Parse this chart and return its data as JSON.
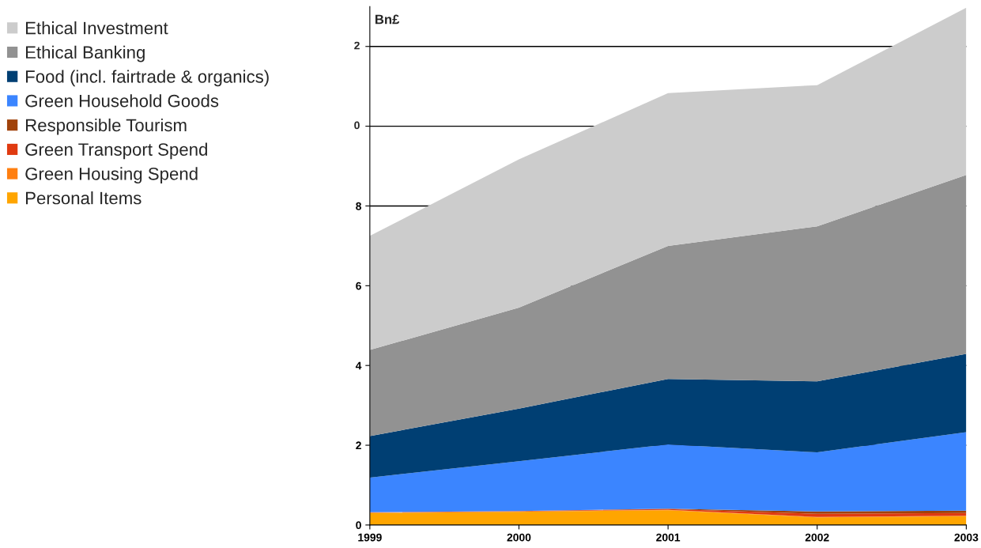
{
  "chart_data": {
    "type": "area",
    "stacked": true,
    "ylabel": "Bn£",
    "x": [
      1999,
      2000,
      2001,
      2002,
      2003
    ],
    "xlim": [
      1999,
      2003
    ],
    "xticks": [
      1999,
      2000,
      2001,
      2002,
      2003
    ],
    "ylim": [
      0,
      13
    ],
    "yticks": [
      0,
      2,
      4,
      6,
      8,
      {
        "value": 10,
        "label": null
      },
      {
        "value": 12,
        "label": null
      }
    ],
    "annotations": [
      "0",
      "2"
    ],
    "grid": "y",
    "legend": "left",
    "series": [
      {
        "name": "Personal Items",
        "color": "#ffa500",
        "values": [
          0.3,
          0.33,
          0.37,
          0.19,
          0.22
        ]
      },
      {
        "name": "Green Housing Spend",
        "color": "#ff7f10",
        "values": [
          0.01,
          0.01,
          0.01,
          0.01,
          0.01
        ]
      },
      {
        "name": "Green Transport Spend",
        "color": "#e03a10",
        "values": [
          0.01,
          0.01,
          0.02,
          0.08,
          0.07
        ]
      },
      {
        "name": "Responsible Tourism",
        "color": "#a0420a",
        "values": [
          0.0,
          0.0,
          0.01,
          0.06,
          0.06
        ]
      },
      {
        "name": "Green Household Goods",
        "color": "#3b85ff",
        "values": [
          0.87,
          1.25,
          1.61,
          1.48,
          1.97
        ]
      },
      {
        "name": "Food (incl. fairtrade & organics)",
        "color": "#003f73",
        "values": [
          1.04,
          1.32,
          1.64,
          1.78,
          1.96
        ]
      },
      {
        "name": "Ethical Banking",
        "color": "#929292",
        "values": [
          2.16,
          2.53,
          3.34,
          3.89,
          4.49
        ]
      },
      {
        "name": "Ethical Investment",
        "color": "#cccccc",
        "values": [
          2.86,
          3.72,
          3.83,
          3.54,
          4.19
        ]
      }
    ]
  }
}
